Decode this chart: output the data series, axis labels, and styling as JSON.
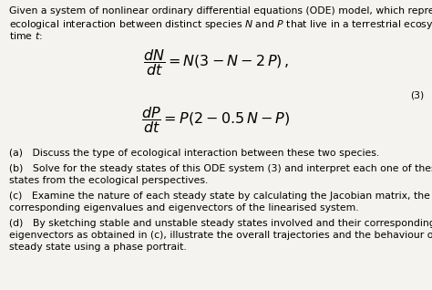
{
  "background_color": "#f5f3ef",
  "text_color": "#000000",
  "intro_line1": "Given a system of nonlinear ordinary differential equations (ODE) model, which represents an",
  "intro_line2": "ecological interaction between distinct species $N$ and $P$ that live in a terrestrial ecosystem at",
  "intro_line3": "time $t$:",
  "eq1_full": "$\\dfrac{dN}{dt} = N(3 - N - 2\\,P)\\,,$",
  "eq2_full": "$\\dfrac{dP}{dt} = P(2 - 0.5\\,N - P)$",
  "eq_number": "(3)",
  "part_a": "(a)   Discuss the type of ecological interaction between these two species.",
  "part_b_1": "(b)   Solve for the steady states of this ODE system (3) and interpret each one of these steady",
  "part_b_2": "states from the ecological perspectives.",
  "part_c_1": "(c)   Examine the nature of each steady state by calculating the Jacobian matrix, the",
  "part_c_2": "corresponding eigenvalues and eigenvectors of the linearised system.",
  "part_d_1": "(d)   By sketching stable and unstable steady states involved and their corresponding",
  "part_d_2": "eigenvectors as obtained in (c), illustrate the overall trajectories and the behaviour of each",
  "part_d_3": "steady state using a phase portrait.",
  "font_size_body": 7.8,
  "font_size_eq": 11.5
}
